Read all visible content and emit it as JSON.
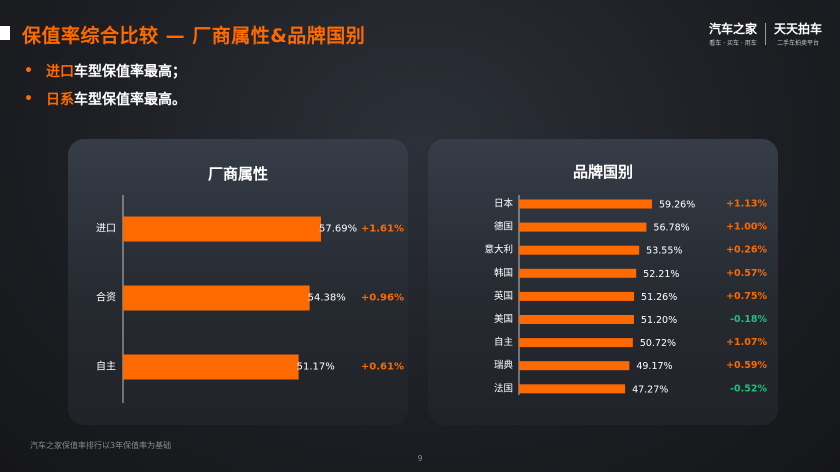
{
  "slide": {
    "title": "保值率综合比较 — 厂商属性&品牌国别",
    "bullets": [
      {
        "highlight": "进口",
        "rest": "车型保值率最高；"
      },
      {
        "highlight": "日系",
        "rest": "车型保值率最高。"
      }
    ],
    "footnote": "汽车之家保值率排行以3年保值率为基础",
    "page_number": "9"
  },
  "logo": {
    "brand1_main": "汽车之家",
    "brand1_sub": "看车 · 买车 · 用车",
    "brand2_main": "天天拍车",
    "brand2_sub": "二手车拍卖平台"
  },
  "colors": {
    "accent": "#ff6a00",
    "positive": "#ff6a00",
    "negative": "#19c37d",
    "axis": "#bfbfbf"
  },
  "chart_data": [
    {
      "type": "bar",
      "orientation": "horizontal",
      "title": "厂商属性",
      "categories": [
        "进口",
        "合资",
        "自主"
      ],
      "values": [
        57.69,
        54.38,
        51.17
      ],
      "value_labels": [
        "57.69%",
        "54.38%",
        "51.17%"
      ],
      "change_labels": [
        "+1.61%",
        "+0.96%",
        "+0.61%"
      ],
      "grid": false
    },
    {
      "type": "bar",
      "orientation": "horizontal",
      "title": "品牌国别",
      "categories": [
        "日本",
        "德国",
        "意大利",
        "韩国",
        "英国",
        "美国",
        "自主",
        "瑞典",
        "法国"
      ],
      "values": [
        59.26,
        56.78,
        53.55,
        52.21,
        51.26,
        51.2,
        50.72,
        49.17,
        47.27
      ],
      "value_labels": [
        "59.26%",
        "56.78%",
        "53.55%",
        "52.21%",
        "51.26%",
        "51.20%",
        "50.72%",
        "49.17%",
        "47.27%"
      ],
      "change_labels": [
        "+1.13%",
        "+1.00%",
        "+0.26%",
        "+0.57%",
        "+0.75%",
        "-0.18%",
        "+1.07%",
        "+0.59%",
        "-0.52%"
      ],
      "grid": false
    }
  ]
}
